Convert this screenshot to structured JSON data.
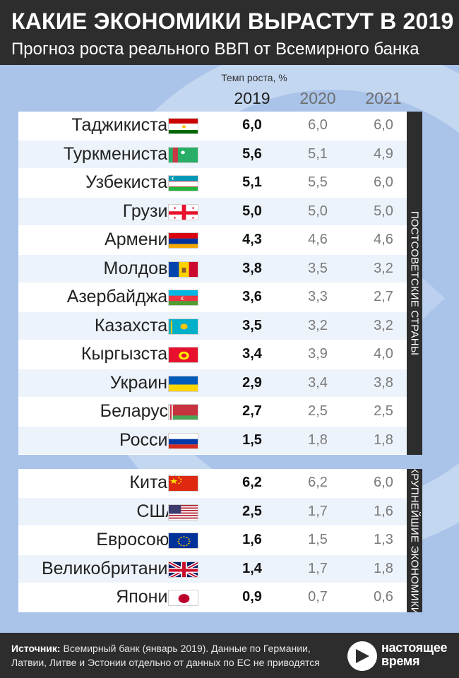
{
  "header": {
    "title": "КАКИЕ ЭКОНОМИКИ ВЫРАСТУТ В 2019",
    "subtitle": "Прогноз роста реального ВВП от Всемирного банка"
  },
  "table_header": {
    "caption": "Темп роста, %",
    "years": [
      "2019",
      "2020",
      "2021"
    ]
  },
  "chart_data": {
    "type": "table",
    "columns": [
      "2019",
      "2020",
      "2021"
    ],
    "groups": [
      {
        "label": "ПОСТСОВЕТСКИЕ СТРАНЫ",
        "rows": [
          {
            "country": "Таджикистан",
            "flag": "tajikistan-flag",
            "values": [
              "6,0",
              "6,0",
              "6,0"
            ]
          },
          {
            "country": "Туркменистан",
            "flag": "turkmenistan-flag",
            "values": [
              "5,6",
              "5,1",
              "4,9"
            ]
          },
          {
            "country": "Узбекистан",
            "flag": "uzbekistan-flag",
            "values": [
              "5,1",
              "5,5",
              "6,0"
            ]
          },
          {
            "country": "Грузия",
            "flag": "georgia-flag",
            "values": [
              "5,0",
              "5,0",
              "5,0"
            ]
          },
          {
            "country": "Армения",
            "flag": "armenia-flag",
            "values": [
              "4,3",
              "4,6",
              "4,6"
            ]
          },
          {
            "country": "Молдова",
            "flag": "moldova-flag",
            "values": [
              "3,8",
              "3,5",
              "3,2"
            ]
          },
          {
            "country": "Азербайджан",
            "flag": "azerbaijan-flag",
            "values": [
              "3,6",
              "3,3",
              "2,7"
            ]
          },
          {
            "country": "Казахстан",
            "flag": "kazakhstan-flag",
            "values": [
              "3,5",
              "3,2",
              "3,2"
            ]
          },
          {
            "country": "Кыргызстан",
            "flag": "kyrgyzstan-flag",
            "values": [
              "3,4",
              "3,9",
              "4,0"
            ]
          },
          {
            "country": "Украина",
            "flag": "ukraine-flag",
            "values": [
              "2,9",
              "3,4",
              "3,8"
            ]
          },
          {
            "country": "Беларусь",
            "flag": "belarus-flag",
            "values": [
              "2,7",
              "2,5",
              "2,5"
            ]
          },
          {
            "country": "Россия",
            "flag": "russia-flag",
            "values": [
              "1,5",
              "1,8",
              "1,8"
            ]
          }
        ]
      },
      {
        "label": "КРУПНЕЙШИЕ ЭКОНОМИКИ",
        "rows": [
          {
            "country": "Китай",
            "flag": "china-flag",
            "values": [
              "6,2",
              "6,2",
              "6,0"
            ]
          },
          {
            "country": "США",
            "flag": "usa-flag",
            "values": [
              "2,5",
              "1,7",
              "1,6"
            ]
          },
          {
            "country": "Евросоюз",
            "flag": "eu-flag",
            "values": [
              "1,6",
              "1,5",
              "1,3"
            ]
          },
          {
            "country": "Великобритания",
            "flag": "uk-flag",
            "values": [
              "1,4",
              "1,7",
              "1,8"
            ]
          },
          {
            "country": "Япония",
            "flag": "japan-flag",
            "values": [
              "0,9",
              "0,7",
              "0,6"
            ]
          }
        ]
      }
    ]
  },
  "footer": {
    "source_label": "Источник:",
    "source_text": " Всемирный банк (январь 2019). Данные по Германии, Латвии, Литве и Эстонии отдельно от данных по ЕС не приводятся",
    "logo_icon": "play-arrow-icon",
    "logo_line1": "настоящее",
    "logo_line2": "время"
  },
  "colors": {
    "dark": "#2d2d2d",
    "background_blue": "#a9c3e9",
    "row_alt": "#edf3fb"
  }
}
